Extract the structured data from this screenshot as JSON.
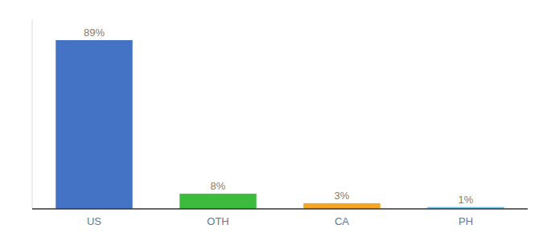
{
  "chart_data": {
    "type": "bar",
    "categories": [
      "US",
      "OTH",
      "CA",
      "PH"
    ],
    "values": [
      89,
      8,
      3,
      1
    ],
    "value_labels": [
      "89%",
      "8%",
      "3%",
      "1%"
    ],
    "colors": [
      "#4472c4",
      "#3dbb3d",
      "#f5a623",
      "#74c6e8"
    ],
    "ylim": [
      0,
      100
    ],
    "data_labels": true,
    "tick_labels": "x",
    "grid": false
  }
}
